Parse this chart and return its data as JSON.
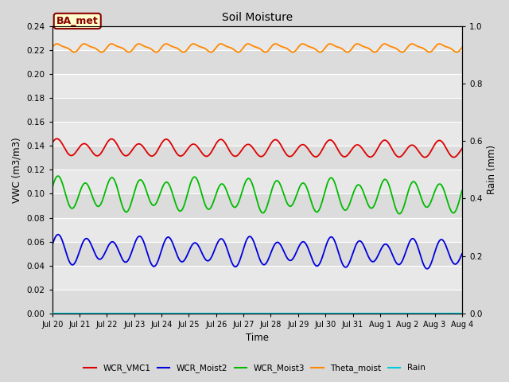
{
  "title": "Soil Moisture",
  "xlabel": "Time",
  "ylabel_left": "VWC (m3/m3)",
  "ylabel_right": "Rain (mm)",
  "ylim_left": [
    0.0,
    0.24
  ],
  "ylim_right": [
    0.0,
    1.0
  ],
  "yticks_left": [
    0.0,
    0.02,
    0.04,
    0.06,
    0.08,
    0.1,
    0.12,
    0.14,
    0.16,
    0.18,
    0.2,
    0.22,
    0.24
  ],
  "yticks_right": [
    0.0,
    0.2,
    0.4,
    0.6,
    0.8,
    1.0
  ],
  "bg_color": "#d8d8d8",
  "plot_bg_color_light": "#e8e8e8",
  "plot_bg_color_dark": "#d0d0d0",
  "grid_color": "#c0c0c0",
  "annotation_text": "BA_met",
  "annotation_bg": "#ffffcc",
  "annotation_edge": "#8b0000",
  "series": {
    "WCR_VMC1": {
      "color": "#dd0000",
      "base": 0.138,
      "amp": 0.006,
      "freq": 1.0,
      "phase": 0.5
    },
    "WCR_Moist2": {
      "color": "#0000dd",
      "base": 0.053,
      "amp": 0.01,
      "freq": 1.0,
      "phase": 0.2
    },
    "WCR_Moist3": {
      "color": "#00bb00",
      "base": 0.1,
      "amp": 0.012,
      "freq": 1.0,
      "phase": 0.3
    },
    "Theta_moist": {
      "color": "#ff8800",
      "base": 0.222,
      "amp": 0.003,
      "freq": 1.0,
      "phase": 0.0
    },
    "Rain": {
      "color": "#00ccdd",
      "base": 0.0,
      "amp": 0.0,
      "freq": 0.0,
      "phase": 0.0
    }
  },
  "legend_labels": [
    "WCR_VMC1",
    "WCR_Moist2",
    "WCR_Moist3",
    "Theta_moist",
    "Rain"
  ],
  "legend_colors": [
    "#dd0000",
    "#0000dd",
    "#00bb00",
    "#ff8800",
    "#00ccdd"
  ],
  "xtick_labels": [
    "Jul 20",
    "Jul 21",
    "Jul 22",
    "Jul 23",
    "Jul 24",
    "Jul 25",
    "Jul 26",
    "Jul 27",
    "Jul 28",
    "Jul 29",
    "Jul 30",
    "Jul 31",
    "Aug 1",
    "Aug 2",
    "Aug 3",
    "Aug 4"
  ],
  "band_colors": [
    "#dcdcdc",
    "#e8e8e8"
  ]
}
